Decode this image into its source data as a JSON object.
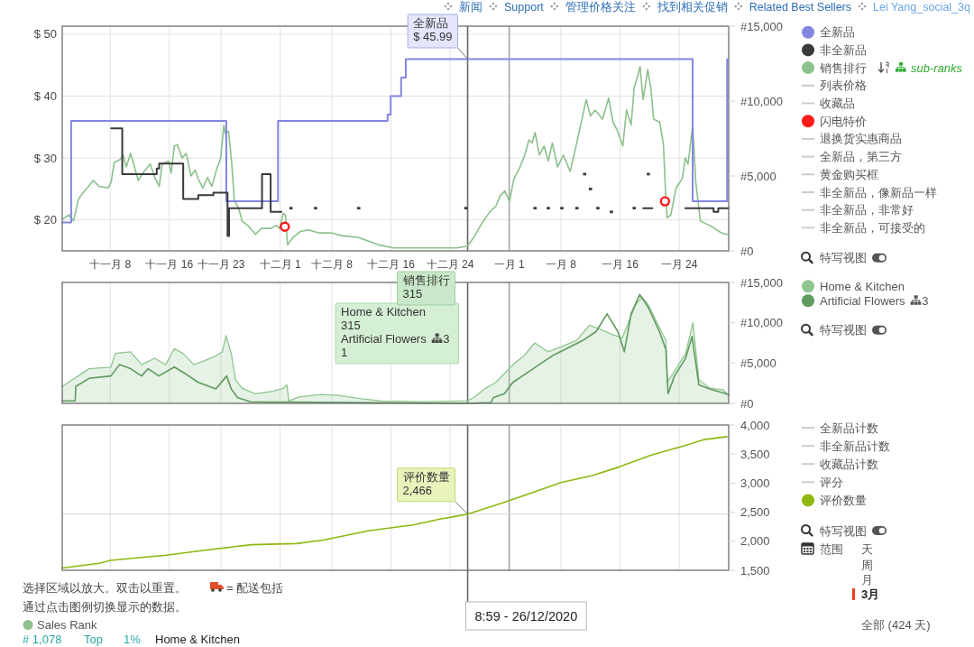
{
  "chart_data": [
    {
      "type": "line",
      "series": [
        {
          "name": "全新品",
          "type": "step",
          "color": "#8385e3",
          "x": [
            "2020-11-01T12:00",
            "2020-11-02T17:00",
            "2020-11-23T17:00",
            "2020-11-30T17:00",
            "2020-12-15T13:00",
            "2020-12-15T23:00",
            "2020-12-17T09:00",
            "2020-12-18T00:00",
            "2021-01-25T20:00",
            "2021-01-30T12:00"
          ],
          "values": [
            19.6,
            36,
            23,
            36,
            37,
            40,
            43,
            45.99,
            23,
            45.99
          ]
        },
        {
          "name": "非全新品",
          "type": "step",
          "color": "#3a3a3a",
          "x": [
            "2020-11-08T03:00",
            "2020-11-09T15:00",
            "2020-11-14T07:00",
            "2020-11-14T15:00",
            "2020-11-17T21:00",
            "2020-11-19T22:00",
            "2020-11-21T23:00",
            "2020-11-23T21:00",
            "2020-11-24T02:00",
            "2020-11-28T13:00",
            "2020-11-29T17:00",
            "2020-12-01T03:00",
            "2020-12-01T04:00",
            "2021-01-19T03:00",
            "2021-01-20T08:00",
            "2021-01-20T09:00",
            "2021-01-24T20:00",
            "2021-01-28T16:00",
            "2021-01-29T07:00",
            "2021-01-30T17:00"
          ],
          "values": [
            34.8,
            27.4,
            28.3,
            29.1,
            23.4,
            24.0,
            24.4,
            17.4,
            21.9,
            27.4,
            21.3,
            21.3,
            null,
            21.9,
            21.9,
            null,
            21.9,
            21.3,
            21.9,
            21.9
          ]
        },
        {
          "name": "销售排行",
          "axis": "y2",
          "color": "#8cc08c",
          "x": [
            "2020-11-01T12:00",
            "2020-11-02T10:00",
            "2020-11-03T01:00",
            "2020-11-03T16:00",
            "2020-11-04T01:00",
            "2020-11-04T21:00",
            "2020-11-05T17:00",
            "2020-11-06T12:00",
            "2020-11-07T17:00",
            "2020-11-08T03:00",
            "2020-11-08T13:00",
            "2020-11-09T08:00",
            "2020-11-09T18:00",
            "2020-11-10T04:00",
            "2020-11-10T18:00",
            "2020-11-11T04:00",
            "2020-11-11T19:00",
            "2020-11-12T14:00",
            "2020-11-13T10:00",
            "2020-11-14T01:00",
            "2020-11-14T15:00",
            "2020-11-15T01:00",
            "2020-11-15T21:00",
            "2020-11-16T06:00",
            "2020-11-16T16:00",
            "2020-11-17T02:00",
            "2020-11-17T17:00",
            "2020-11-18T07:00",
            "2020-11-18T22:00",
            "2020-11-19T12:00",
            "2020-11-19T22:00",
            "2020-11-20T13:00",
            "2020-11-21T04:00",
            "2020-11-21T18:00",
            "2020-11-22T09:00",
            "2020-11-22T23:00",
            "2020-11-23T09:00",
            "2020-11-23T14:00",
            "2020-11-24T00:00",
            "2020-11-24T10:00",
            "2020-11-24T19:00",
            "2020-11-25T10:00",
            "2020-11-25T20:00",
            "2020-11-26T15:00",
            "2020-11-27T16:00",
            "2020-11-28T11:00",
            "2020-11-29T17:00",
            "2020-11-30T12:00",
            "2020-11-30T22:00",
            "2020-12-01T10:00",
            "2020-12-01T17:00",
            "2020-12-02T00:00",
            "2020-12-02T18:00",
            "2020-12-03T18:00",
            "2020-12-04T19:00",
            "2020-12-06T05:00",
            "2020-12-07T20:00",
            "2020-12-09T11:00",
            "2020-12-11T12:00",
            "2020-12-12T17:00",
            "2020-12-14T08:00",
            "2020-12-16T09:00",
            "2020-12-18T09:00",
            "2020-12-22T11:00",
            "2020-12-24T22:00",
            "2020-12-26T08:59",
            "2020-12-27T08:00",
            "2020-12-28T09:00",
            "2020-12-29T09:00",
            "2020-12-30T05:00",
            "2020-12-30T19:00",
            "2020-12-31T10:00",
            "2021-01-01T01:00",
            "2021-01-01T15:00",
            "2021-01-02T11:00",
            "2021-01-03T01:00",
            "2021-01-03T16:00",
            "2021-01-04T02:00",
            "2021-01-04T12:00",
            "2021-01-05T02:00",
            "2021-01-05T17:00",
            "2021-01-06T07:00",
            "2021-01-06T20:00",
            "2021-01-07T13:00",
            "2021-01-08T08:00",
            "2021-01-09T06:00",
            "2021-01-09T23:00",
            "2021-01-10T14:00",
            "2021-01-11T10:00",
            "2021-01-12T00:00",
            "2021-01-12T15:00",
            "2021-01-13T15:00",
            "2021-01-14T11:00",
            "2021-01-15T01:00",
            "2021-01-15T16:00",
            "2021-01-16T09:00",
            "2021-01-16T21:00",
            "2021-01-17T12:00",
            "2021-01-17T22:00",
            "2021-01-18T08:00",
            "2021-01-18T17:00",
            "2021-01-19T03:00",
            "2021-01-19T18:00",
            "2021-01-20T04:00",
            "2021-01-20T13:00",
            "2021-01-21T09:00",
            "2021-01-21T21:00",
            "2021-01-22T04:00",
            "2021-01-22T09:00",
            "2021-01-22T21:00",
            "2021-01-23T14:00",
            "2021-01-24T10:00",
            "2021-01-24T20:00",
            "2021-01-25T05:00",
            "2021-01-25T20:00",
            "2021-01-26T06:00",
            "2021-01-26T21:00",
            "2021-01-27T16:00",
            "2021-01-28T12:00",
            "2021-01-29T17:00",
            "2021-01-30T12:00"
          ],
          "values": [
            2100,
            2400,
            2000,
            3400,
            3700,
            4200,
            4700,
            4300,
            4200,
            4600,
            5900,
            6100,
            6400,
            5600,
            6500,
            5800,
            4700,
            5300,
            5800,
            4900,
            4300,
            5800,
            6000,
            5200,
            7000,
            7100,
            6200,
            6500,
            5000,
            5400,
            4800,
            4200,
            4900,
            4300,
            5400,
            6200,
            8400,
            7800,
            8000,
            6000,
            3400,
            2800,
            2000,
            1700,
            1100,
            1500,
            1500,
            1700,
            1500,
            2500,
            2400,
            400,
            900,
            1300,
            1400,
            1200,
            1200,
            1000,
            900,
            700,
            400,
            200,
            200,
            200,
            200,
            315,
            1000,
            1900,
            2600,
            3000,
            3700,
            4000,
            3300,
            4800,
            5600,
            6300,
            7400,
            7200,
            7900,
            6400,
            7000,
            6000,
            7200,
            5600,
            6400,
            5300,
            6800,
            8200,
            10100,
            9000,
            9400,
            8800,
            10200,
            8600,
            8000,
            7000,
            9400,
            8400,
            10900,
            11600,
            12300,
            10100,
            12100,
            10900,
            8800,
            8600,
            7100,
            3800,
            2200,
            2400,
            4200,
            4800,
            6200,
            5800,
            8400,
            4600,
            2000,
            1800,
            1600,
            1200,
            1100
          ]
        },
        {
          "name": "列表价格",
          "color": "#cccccc"
        },
        {
          "name": "收藏品",
          "color": "#cccccc"
        },
        {
          "name": "闪电特价",
          "type": "scatter",
          "marker": "circle",
          "color": "#ff1a1a",
          "x": [
            "2020-12-01T15:00",
            "2021-01-22T02:00"
          ],
          "values": [
            18.9,
            23.0
          ]
        },
        {
          "name": "退换货实惠商品",
          "color": "#cccccc"
        },
        {
          "name": "全新品，第三方",
          "color": "#cccccc"
        },
        {
          "name": "黄金购买框",
          "color": "#cccccc"
        },
        {
          "name": "非全新品，像新品一样",
          "color": "#cccccc"
        },
        {
          "name": "非全新品，非常好",
          "color": "#cccccc"
        },
        {
          "name": "非全新品，可接受的",
          "color": "#cccccc"
        },
        {
          "type": "scatter",
          "marker": "square",
          "color": "#3a3a3a",
          "x": [
            "2020-12-02T11:00",
            "2020-12-05T19:00",
            "2020-12-11T15:00",
            "2020-12-26T03:00",
            "2021-01-04T12:00",
            "2021-01-06T07:00",
            "2021-01-08T03:00",
            "2021-01-10T04:00",
            "2021-01-11T05:00",
            "2021-01-12T00:00",
            "2021-01-13T00:00",
            "2021-01-14T20:00",
            "2021-01-17T22:00",
            "2021-01-19T20:00"
          ],
          "values": [
            21.9,
            21.9,
            21.9,
            21.9,
            21.9,
            21.9,
            21.9,
            21.9,
            27.4,
            25.0,
            21.9,
            21.3,
            21.9,
            27.4
          ]
        }
      ],
      "xlim": [
        "2020-11-01T12:00",
        "2021-01-30T17:00"
      ],
      "xticks": [
        {
          "value": "2020-11-08",
          "label": "十一月 8"
        },
        {
          "value": "2020-11-16",
          "label": "十一月 16"
        },
        {
          "value": "2020-11-23",
          "label": "十一月 23"
        },
        {
          "value": "2020-12-01",
          "label": "十二月 1"
        },
        {
          "value": "2020-12-08",
          "label": "十二月 8"
        },
        {
          "value": "2020-12-16",
          "label": "十二月 16"
        },
        {
          "value": "2020-12-24",
          "label": "十二月 24"
        },
        {
          "value": "2021-01-01",
          "label": "一月 1"
        },
        {
          "value": "2021-01-08",
          "label": "一月 8"
        },
        {
          "value": "2021-01-16",
          "label": "一月 16"
        },
        {
          "value": "2021-01-24",
          "label": "一月 24"
        }
      ],
      "ylim": [
        15,
        51.3
      ],
      "yticks": [
        {
          "value": 20,
          "label": "$ 20"
        },
        {
          "value": 30,
          "label": "$ 30"
        },
        {
          "value": 40,
          "label": "$ 40"
        },
        {
          "value": 50,
          "label": "$ 50"
        }
      ],
      "y2lim": [
        0,
        15000
      ],
      "y2ticks": [
        {
          "value": 0,
          "label": "#0"
        },
        {
          "value": 5000,
          "label": "#5,000"
        },
        {
          "value": 10000,
          "label": "#10,000"
        },
        {
          "value": 15000,
          "label": "#15,000"
        }
      ],
      "grid": true,
      "legend": "right",
      "ref_lines": [
        {
          "axis": "x",
          "value": "2020-12-26T08:59",
          "color": "#666666"
        },
        {
          "axis": "x",
          "value": "2021-01-01",
          "color": "#a8a8a8"
        }
      ],
      "annotations": [
        {
          "text": "全新品\n$ 45.99",
          "x": "2020-12-26T08:59",
          "y": 45.99
        },
        "销售排行\n315",
        "sub-ranks",
        "特写视图",
        "新闻",
        "Support",
        "管理价格关注",
        "找到相关促销",
        "Related Best Sellers",
        "Lei Yang_social_3q"
      ]
    },
    {
      "type": "area",
      "series": [
        {
          "name": "Home & Kitchen",
          "color": "#8fc68f",
          "x": [
            "2020-11-01T12:00",
            "2020-11-03T16:00",
            "2020-11-05T03:00",
            "2020-11-08T02:00",
            "2020-11-08T17:00",
            "2020-11-10T18:00",
            "2020-11-12T06:00",
            "2020-11-14T00:00",
            "2020-11-15T12:00",
            "2020-11-16T16:00",
            "2020-11-17T20:00",
            "2020-11-19T08:00",
            "2020-11-20T19:00",
            "2020-11-22T07:00",
            "2020-11-23T04:00",
            "2020-11-23T16:00",
            "2020-11-24T09:00",
            "2020-11-24T23:00",
            "2020-11-25T20:00",
            "2020-11-27T15:00",
            "2020-11-30T00:00",
            "2020-12-01T11:00",
            "2020-12-01T22:00",
            "2020-12-02T04:00",
            "2020-12-03T13:00",
            "2020-12-06T12:00",
            "2020-12-08T20:00",
            "2020-12-11T19:00",
            "2020-12-14T18:00",
            "2020-12-20T16:00",
            "2020-12-26T08:59",
            "2020-12-27T04:00",
            "2020-12-28T16:00",
            "2020-12-30T04:00",
            "2020-12-31T08:00",
            "2021-01-01T12:00",
            "2021-01-03T00:00",
            "2021-01-04T11:00",
            "2021-01-06T06:00",
            "2021-01-08T00:00",
            "2021-01-10T02:00",
            "2021-01-11T21:00",
            "2021-01-13T08:00",
            "2021-01-14T19:00",
            "2021-01-16T07:00",
            "2021-01-18T02:00",
            "2021-01-18T23:00",
            "2021-01-19T20:00",
            "2021-01-21T08:00",
            "2021-01-22T05:00",
            "2021-01-22T09:00",
            "2021-01-23T09:00",
            "2021-01-24T21:00",
            "2021-01-25T21:00",
            "2021-01-26T16:00",
            "2021-01-28T03:00",
            "2021-01-29T22:00",
            "2021-01-30T17:00"
          ],
          "values": [
            2100,
            3400,
            4300,
            4500,
            6200,
            6400,
            4800,
            5600,
            4800,
            6800,
            6200,
            4800,
            5300,
            5900,
            6400,
            8400,
            6200,
            2900,
            1900,
            1200,
            1500,
            1900,
            2300,
            300,
            800,
            1100,
            1000,
            600,
            300,
            200,
            315,
            700,
            1800,
            2600,
            3700,
            4800,
            5900,
            7500,
            6400,
            7000,
            7800,
            9700,
            9200,
            8600,
            8100,
            12200,
            13200,
            12200,
            9400,
            7800,
            2600,
            4000,
            6200,
            10000,
            2900,
            1900,
            1700,
            1000
          ]
        },
        {
          "name": "Artificial Flowers 3",
          "type": "line",
          "color": "#5f9a5f",
          "x": [
            "2020-11-01T12:00",
            "2020-11-03T06:00",
            "2020-11-03T08:00",
            "2020-11-05T03:00",
            "2020-11-08T02:00",
            "2020-11-09T06:00",
            "2020-11-10T18:00",
            "2020-11-12T06:00",
            "2020-11-13T03:00",
            "2020-11-14T14:00",
            "2020-11-16T16:00",
            "2020-11-18T03:00",
            "2020-11-19T22:00",
            "2020-11-22T07:00",
            "2020-11-23T18:00",
            "2020-11-24T09:00",
            "2020-11-25T06:00",
            "2020-11-27T00:00",
            "2020-12-10T00:00",
            "2020-12-26T08:59",
            "2020-12-29T13:00",
            "2020-12-29T20:00",
            "2020-12-31T08:00",
            "2021-01-01T12:00",
            "2021-01-03T07:00",
            "2021-01-05T01:00",
            "2021-01-06T20:00",
            "2021-01-09T05:00",
            "2021-01-10T23:00",
            "2021-01-12T18:00",
            "2021-01-14T06:00",
            "2021-01-15T17:00",
            "2021-01-16T14:00",
            "2021-01-17T12:00",
            "2021-01-18T16:00",
            "2021-01-19T20:00",
            "2021-01-21T08:00",
            "2021-01-22T05:00",
            "2021-01-22T12:00",
            "2021-01-23T09:00",
            "2021-01-24T21:00",
            "2021-01-25T18:00",
            "2021-01-26T16:00",
            "2021-01-28T03:00",
            "2021-01-30T17:00"
          ],
          "values": [
            300,
            300,
            2100,
            3100,
            3400,
            4800,
            4300,
            3400,
            4300,
            3400,
            4500,
            3700,
            2600,
            1800,
            3400,
            1800,
            700,
            200,
            100,
            1,
            100,
            700,
            1200,
            2600,
            3700,
            4800,
            5900,
            7000,
            7800,
            8900,
            11100,
            8900,
            6400,
            11100,
            13500,
            11900,
            8900,
            6700,
            1200,
            3400,
            5600,
            8300,
            2300,
            1800,
            1100
          ]
        }
      ],
      "xlim": [
        "2020-11-01T12:00",
        "2021-01-30T17:00"
      ],
      "xticks": [
        {
          "value": "2020-11-08",
          "label": null
        },
        {
          "value": "2020-11-16",
          "label": null
        },
        {
          "value": "2020-11-23",
          "label": null
        },
        {
          "value": "2020-12-01",
          "label": null
        },
        {
          "value": "2020-12-08",
          "label": null
        },
        {
          "value": "2020-12-16",
          "label": null
        },
        {
          "value": "2020-12-24",
          "label": null
        },
        {
          "value": "2021-01-01",
          "label": null
        },
        {
          "value": "2021-01-08",
          "label": null
        },
        {
          "value": "2021-01-16",
          "label": null
        },
        {
          "value": "2021-01-24",
          "label": null
        }
      ],
      "ylim": [
        0,
        15000
      ],
      "yticks": [
        {
          "value": 0,
          "label": "#0"
        },
        {
          "value": 5000,
          "label": "#5,000"
        },
        {
          "value": 10000,
          "label": "#10,000"
        },
        {
          "value": 15000,
          "label": "#15,000"
        }
      ],
      "tick_labels": "y",
      "grid": "x",
      "legend": "right",
      "ref_lines": [
        {
          "axis": "x",
          "value": "2020-12-26T08:59",
          "color": "#666666"
        },
        {
          "axis": "x",
          "value": "2021-01-01",
          "color": "#a8a8a8"
        }
      ],
      "annotations": [
        "Home & Kitchen\n315\nArtificial Flowers 3\n1",
        "特写视图"
      ]
    },
    {
      "type": "line",
      "series": [
        {
          "name": "全新品计数",
          "color": "#cccccc"
        },
        {
          "name": "非全新品计数",
          "color": "#cccccc"
        },
        {
          "name": "收藏品计数",
          "color": "#cccccc"
        },
        {
          "name": "评分",
          "color": "#cccccc"
        },
        {
          "name": "评价数量",
          "color": "#8cb80f",
          "x": [
            "2020-11-01T12:00",
            "2020-11-06T12:00",
            "2020-11-08T00:00",
            "2020-11-15T14:00",
            "2020-11-21T01:00",
            "2020-11-27T03:00",
            "2020-12-03T05:00",
            "2020-12-06T20:00",
            "2020-12-12T22:00",
            "2020-12-18T23:00",
            "2020-12-22T15:00",
            "2020-12-26T08:59",
            "2020-12-31T03:00",
            "2021-01-03T18:00",
            "2021-01-08T00:00",
            "2021-01-12T06:00",
            "2021-01-15T22:00",
            "2021-01-20T04:00",
            "2021-01-24T09:00",
            "2021-01-27T10:00",
            "2021-01-30T11:00"
          ],
          "values": [
            1540,
            1620,
            1670,
            1760,
            1850,
            1940,
            1960,
            2020,
            2180,
            2280,
            2380,
            2466,
            2660,
            2820,
            3010,
            3130,
            3280,
            3480,
            3630,
            3750,
            3800
          ]
        }
      ],
      "xlim": [
        "2020-11-01T12:00",
        "2021-01-30T17:00"
      ],
      "xticks": [
        {
          "value": "2020-11-08",
          "label": null
        },
        {
          "value": "2020-11-16",
          "label": null
        },
        {
          "value": "2020-11-23",
          "label": null
        },
        {
          "value": "2020-12-01",
          "label": null
        },
        {
          "value": "2020-12-08",
          "label": null
        },
        {
          "value": "2020-12-16",
          "label": null
        },
        {
          "value": "2020-12-24",
          "label": null
        },
        {
          "value": "2021-01-01",
          "label": null
        },
        {
          "value": "2021-01-08",
          "label": null
        },
        {
          "value": "2021-01-16",
          "label": null
        },
        {
          "value": "2021-01-24",
          "label": null
        }
      ],
      "ylim": [
        1500,
        4000
      ],
      "yticks": [
        {
          "value": 1500,
          "label": "1,500"
        },
        {
          "value": 2000,
          "label": "2,000"
        },
        {
          "value": 2500,
          "label": "2,500"
        },
        {
          "value": 3000,
          "label": "3,000"
        },
        {
          "value": 3500,
          "label": "3,500"
        },
        {
          "value": 4000,
          "label": "4,000"
        }
      ],
      "tick_labels": "y",
      "grid": "x",
      "legend": "right",
      "ref_lines": [
        {
          "axis": "x",
          "value": "2020-12-26T08:59",
          "label": "8:59 - 26/12/2020",
          "color": "#666666"
        },
        {
          "axis": "x",
          "value": "2021-01-01",
          "color": "#a8a8a8"
        },
        {
          "axis": "y",
          "value": 2466,
          "color": "#d6d6d6"
        }
      ],
      "annotations": [
        {
          "text": "评价数量\n2,466",
          "x": "2020-12-26T08:59",
          "y": 2466
        },
        "特写视图",
        "范围",
        "天",
        "周",
        "月",
        "3月",
        "全部 (424 天)",
        "选择区域以放大。双击以重置。",
        "= 配送包括",
        "通过点击图例切换显示的数据。",
        "Sales Rank",
        "# 1,078",
        "Top",
        "1%",
        "Home & Kitchen"
      ]
    }
  ]
}
